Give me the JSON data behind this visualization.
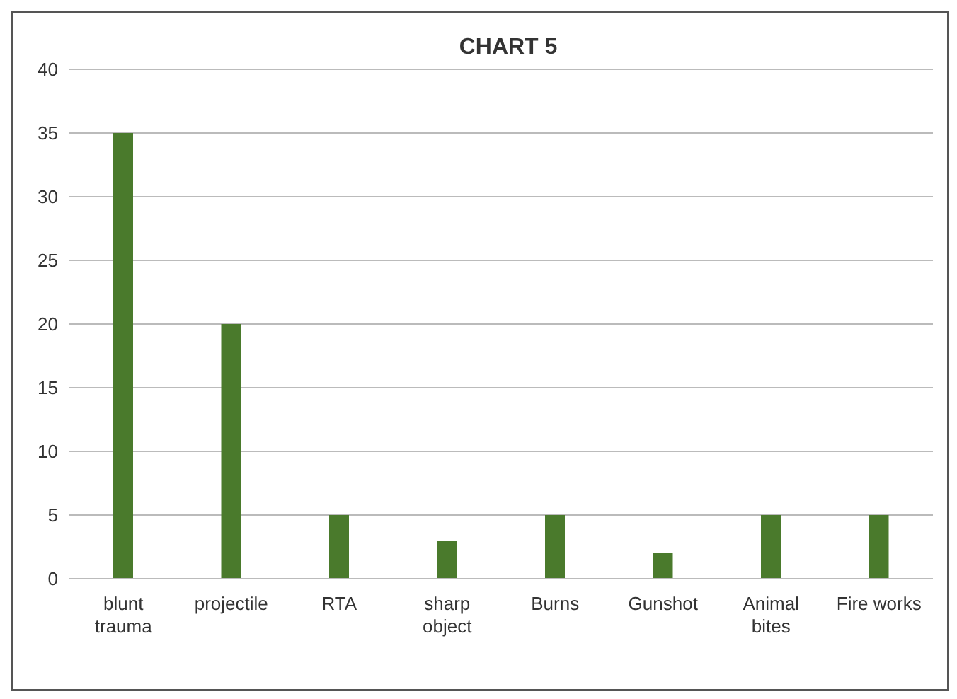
{
  "chart_data": {
    "type": "bar",
    "title": "CHART 5",
    "categories": [
      "blunt trauma",
      "projectile",
      "RTA",
      "sharp object",
      "Burns",
      "Gunshot",
      "Animal bites",
      "Fire works"
    ],
    "values": [
      35,
      20,
      5,
      3,
      5,
      2,
      5,
      5
    ],
    "color": "#4a7a2c",
    "ylim": [
      0,
      40
    ],
    "yticks": [
      0,
      5,
      10,
      15,
      20,
      25,
      30,
      35,
      40
    ],
    "grid": "y",
    "legend": false
  }
}
